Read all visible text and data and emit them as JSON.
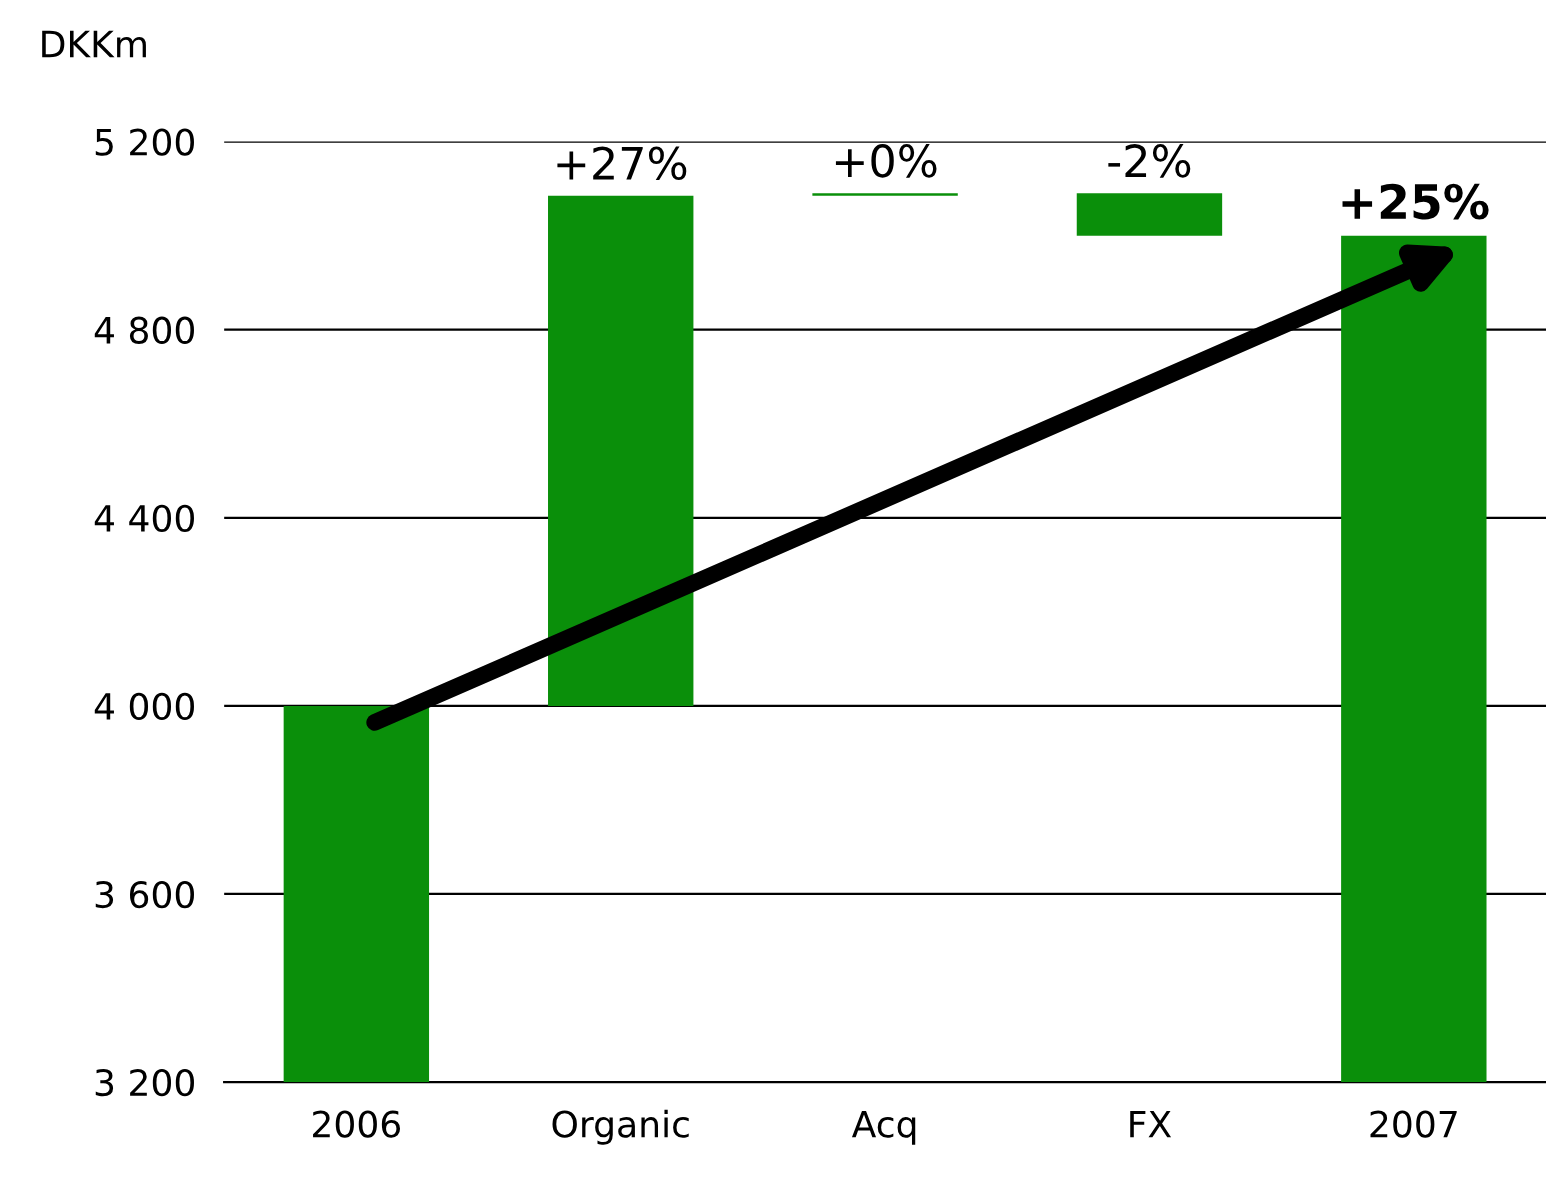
{
  "chart_data": {
    "type": "bar",
    "ylabel": "DKKm",
    "categories": [
      "2006",
      "Organic",
      "Acq",
      "FX",
      "2007"
    ],
    "values": [
      800,
      1085,
      5,
      90,
      1800
    ],
    "base": [
      3200,
      4000,
      5085,
      5000,
      3200
    ],
    "color": "#0a8f0a",
    "ylim": [
      3200,
      5200
    ],
    "yticks": [
      {
        "value": 3200,
        "label": "3 200"
      },
      {
        "value": 3600,
        "label": "3 600"
      },
      {
        "value": 4000,
        "label": "4 000"
      },
      {
        "value": 4400,
        "label": "4 400"
      },
      {
        "value": 4800,
        "label": "4 800"
      },
      {
        "value": 5200,
        "label": "5 200"
      }
    ],
    "grid": "y",
    "annotations": [
      {
        "text": "+27%",
        "x": "Organic",
        "y": 5085
      },
      {
        "text": "+0%",
        "x": "Acq",
        "y": 5090
      },
      {
        "text": "-2%",
        "x": "FX",
        "y": 5090
      },
      {
        "text": "+25%",
        "x": "2007",
        "y": 5000
      }
    ]
  }
}
